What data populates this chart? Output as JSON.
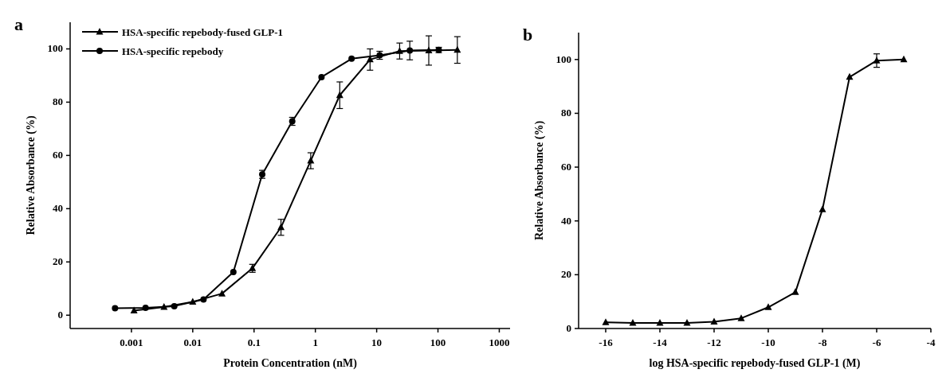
{
  "chart_data": [
    {
      "type": "line",
      "title": "a",
      "xlabel": "Protein Concentration (nM)",
      "ylabel": "Relative Absorbance (%)",
      "log": "x",
      "xlim": [
        0.0001,
        1500
      ],
      "xticks": [
        0.001,
        0.01,
        0.1,
        1,
        10,
        100,
        1000
      ],
      "ylim": [
        -5,
        110
      ],
      "yticks": [
        0,
        20,
        40,
        60,
        80,
        100
      ],
      "grid": false,
      "legend": "top left",
      "series": [
        {
          "name": "HSA-specific repebody-fused GLP-1",
          "color": "#000000",
          "marker": "triangle",
          "x": [
            0.0011,
            0.0034,
            0.01,
            0.03,
            0.094,
            0.275,
            0.84,
            2.5,
            7.8,
            23.7,
            70.8,
            207
          ],
          "values": [
            1.7,
            3.1,
            5.0,
            8.1,
            17.6,
            33,
            58,
            82.6,
            96,
            99.2,
            99.4,
            99.6
          ],
          "errors": [
            null,
            null,
            null,
            null,
            1.5,
            3,
            3,
            5,
            4,
            3,
            5.5,
            5
          ]
        },
        {
          "name": "HSA-specific repebody",
          "color": "#000000",
          "marker": "circle",
          "x": [
            0.00054,
            0.0017,
            0.005,
            0.015,
            0.046,
            0.136,
            0.42,
            1.26,
            3.9,
            11.2,
            34.7,
            103
          ],
          "values": [
            2.6,
            2.8,
            3.4,
            5.9,
            16.2,
            52.9,
            72.8,
            89.4,
            96.3,
            97.6,
            99.4,
            99.6
          ],
          "errors": [
            null,
            null,
            null,
            null,
            null,
            1.5,
            1.5,
            null,
            null,
            1.5,
            3.5,
            1
          ]
        }
      ]
    },
    {
      "type": "line",
      "title": "b",
      "xlabel": "log HSA-specific repebody-fused GLP-1 (M)",
      "ylabel": "Relative Absorbance (%)",
      "xlim": [
        -17,
        -4
      ],
      "xticks": [
        -16,
        -14,
        -12,
        -10,
        -8,
        -6,
        -4
      ],
      "ylim": [
        0,
        110
      ],
      "yticks": [
        0,
        20,
        40,
        60,
        80,
        100
      ],
      "grid": false,
      "legend": false,
      "series": [
        {
          "color": "#000000",
          "marker": "triangle",
          "x": [
            -16,
            -15,
            -14,
            -13,
            -12,
            -11,
            -10,
            -9,
            -8,
            -7,
            -6,
            -5
          ],
          "values": [
            2.3,
            2.1,
            2.1,
            2.1,
            2.5,
            3.8,
            7.9,
            13.5,
            44.3,
            93.5,
            99.6,
            100
          ],
          "errors": [
            null,
            null,
            null,
            null,
            null,
            null,
            null,
            null,
            null,
            null,
            2.5,
            null
          ]
        }
      ]
    }
  ]
}
